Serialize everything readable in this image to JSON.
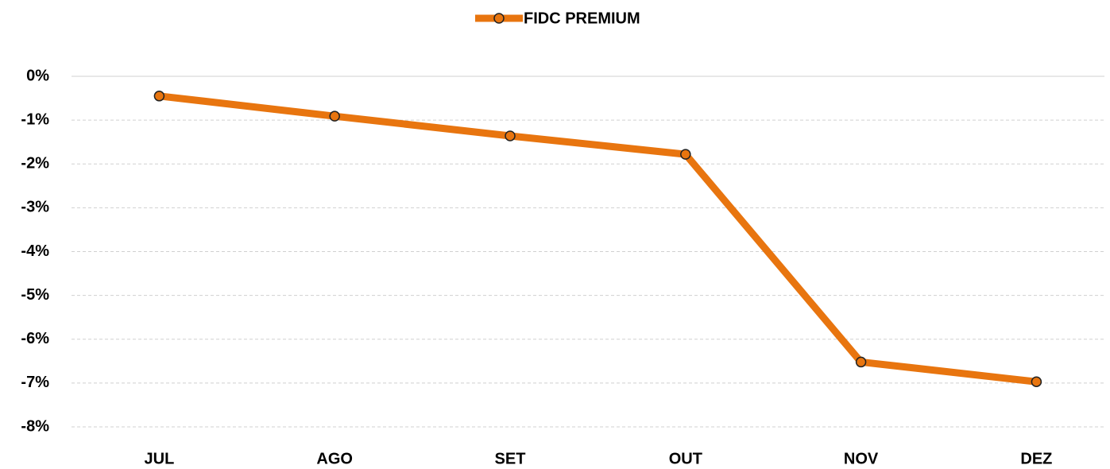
{
  "chart_data": {
    "type": "line",
    "categories": [
      "JUL",
      "AGO",
      "SET",
      "OUT",
      "NOV",
      "DEZ"
    ],
    "series": [
      {
        "name": "FIDC PREMIUM",
        "color": "#e8750f",
        "values": [
          -0.45,
          -0.91,
          -1.36,
          -1.78,
          -6.52,
          -6.97
        ]
      }
    ],
    "ylim": [
      -8,
      0
    ],
    "yticks": [
      {
        "value": 0,
        "label": "0%"
      },
      {
        "value": -1,
        "label": "-1%"
      },
      {
        "value": -2,
        "label": "-2%"
      },
      {
        "value": -3,
        "label": "-3%"
      },
      {
        "value": -4,
        "label": "-4%"
      },
      {
        "value": -5,
        "label": "-5%"
      },
      {
        "value": -6,
        "label": "-6%"
      },
      {
        "value": -7,
        "label": "-7%"
      },
      {
        "value": -8,
        "label": "-8%"
      }
    ],
    "grid": true,
    "legend": "top"
  }
}
